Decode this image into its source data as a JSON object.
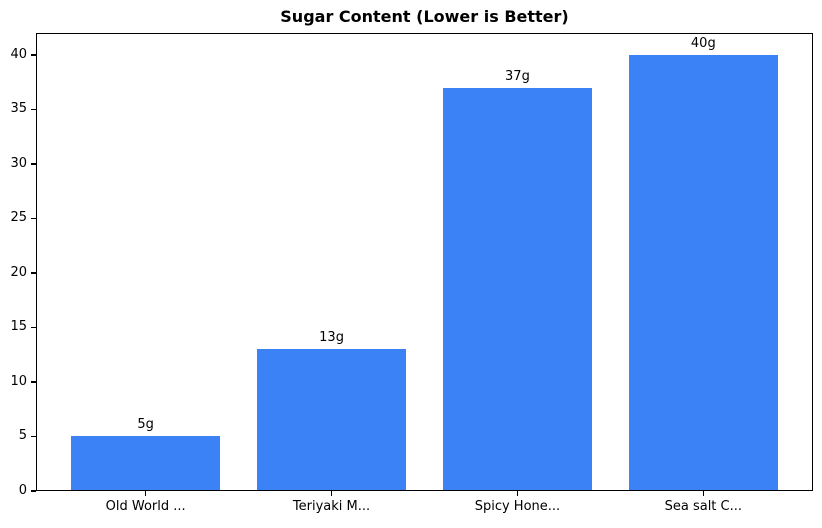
{
  "chart_data": {
    "type": "bar",
    "title": "Sugar Content (Lower is Better)",
    "categories": [
      "Old World ...",
      "Teriyaki M...",
      "Spicy Hone...",
      "Sea salt C..."
    ],
    "values": [
      5,
      13,
      37,
      40
    ],
    "value_labels": [
      "5g",
      "13g",
      "37g",
      "40g"
    ],
    "xlabel": "",
    "ylabel": "",
    "ylim": [
      0,
      42
    ],
    "xlim": [
      -0.59,
      3.59
    ],
    "yticks": [
      0,
      5,
      10,
      15,
      20,
      25,
      30,
      35,
      40
    ],
    "bar_width_fraction": 0.8,
    "bar_color": "#3b82f6",
    "axis_color": "#000000",
    "background_color": "#ffffff",
    "grid": false,
    "legend_position": "none"
  }
}
